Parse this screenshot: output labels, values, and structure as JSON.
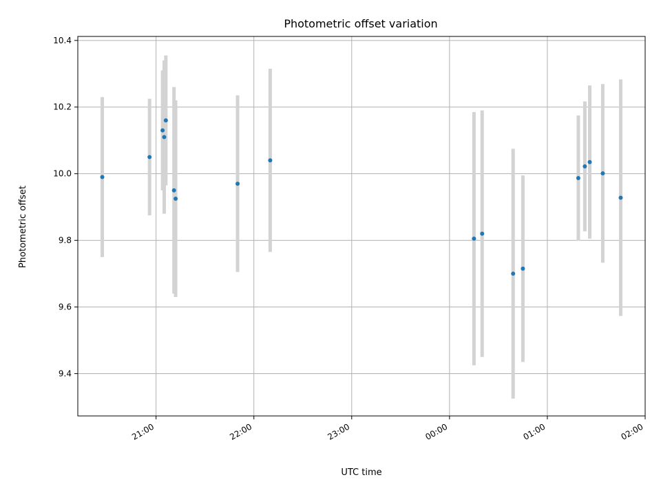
{
  "chart_data": {
    "type": "scatter",
    "title": "Photometric offset variation",
    "xlabel": "UTC time",
    "ylabel": "Photometric offset",
    "x_ticks": [
      "21:00",
      "22:00",
      "23:00",
      "00:00",
      "01:00",
      "02:00"
    ],
    "y_ticks": [
      "9.4",
      "9.6",
      "9.8",
      "10.0",
      "10.2",
      "10.4"
    ],
    "xlim_minutes_after_2100": [
      -48,
      300
    ],
    "ylim": [
      9.273,
      10.412
    ],
    "grid": true,
    "colors": {
      "point": "#1f77b4",
      "errorbar": "#d3d3d3",
      "grid": "#b0b0b0"
    },
    "points": [
      {
        "time": "20:27",
        "y": 9.99,
        "err": 0.24
      },
      {
        "time": "20:56",
        "y": 10.05,
        "err": 0.175
      },
      {
        "time": "21:04",
        "y": 10.13,
        "err": 0.18
      },
      {
        "time": "21:05",
        "y": 10.11,
        "err": 0.23
      },
      {
        "time": "21:06",
        "y": 10.16,
        "err": 0.195
      },
      {
        "time": "21:11",
        "y": 9.95,
        "err": 0.31
      },
      {
        "time": "21:12",
        "y": 9.925,
        "err": 0.295
      },
      {
        "time": "21:50",
        "y": 9.97,
        "err": 0.265
      },
      {
        "time": "22:10",
        "y": 10.04,
        "err": 0.275
      },
      {
        "time": "00:15",
        "y": 9.805,
        "err": 0.38
      },
      {
        "time": "00:20",
        "y": 9.82,
        "err": 0.37
      },
      {
        "time": "00:39",
        "y": 9.7,
        "err": 0.375
      },
      {
        "time": "00:45",
        "y": 9.715,
        "err": 0.28
      },
      {
        "time": "01:19",
        "y": 9.987,
        "err": 0.188
      },
      {
        "time": "01:23",
        "y": 10.022,
        "err": 0.195
      },
      {
        "time": "01:26",
        "y": 10.035,
        "err": 0.23
      },
      {
        "time": "01:34",
        "y": 10.001,
        "err": 0.268
      },
      {
        "time": "01:45",
        "y": 9.928,
        "err": 0.355
      }
    ]
  }
}
